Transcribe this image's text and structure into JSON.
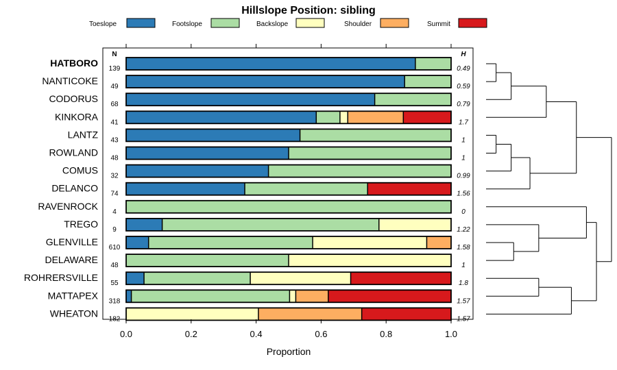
{
  "chart_data": {
    "type": "bar",
    "orientation": "horizontal-stacked",
    "title": "Hillslope Position: sibling",
    "xlabel": "Proportion",
    "xlim": [
      0,
      1
    ],
    "xticks": [
      "0.0",
      "0.2",
      "0.4",
      "0.6",
      "0.8",
      "1.0"
    ],
    "n_header": "N",
    "h_header": "H",
    "legend": [
      {
        "name": "Toeslope",
        "color": "#2c7bb6"
      },
      {
        "name": "Footslope",
        "color": "#abdda4"
      },
      {
        "name": "Backslope",
        "color": "#ffffbf"
      },
      {
        "name": "Shoulder",
        "color": "#fdae61"
      },
      {
        "name": "Summit",
        "color": "#d7191c"
      }
    ],
    "highlight": "HATBORO",
    "rows": [
      {
        "name": "HATBORO",
        "n": "139",
        "h": "0.49",
        "values": [
          0.89,
          0.11,
          0,
          0,
          0
        ]
      },
      {
        "name": "NANTICOKE",
        "n": "49",
        "h": "0.59",
        "values": [
          0.857,
          0.143,
          0,
          0,
          0
        ]
      },
      {
        "name": "CODORUS",
        "n": "68",
        "h": "0.79",
        "values": [
          0.765,
          0.235,
          0,
          0,
          0
        ]
      },
      {
        "name": "KINKORA",
        "n": "41",
        "h": "1.7",
        "values": [
          0.585,
          0.073,
          0.024,
          0.171,
          0.146
        ]
      },
      {
        "name": "LANTZ",
        "n": "43",
        "h": "1",
        "values": [
          0.535,
          0.465,
          0,
          0,
          0
        ]
      },
      {
        "name": "ROWLAND",
        "n": "48",
        "h": "1",
        "values": [
          0.5,
          0.5,
          0,
          0,
          0
        ]
      },
      {
        "name": "COMUS",
        "n": "32",
        "h": "0.99",
        "values": [
          0.438,
          0.562,
          0,
          0,
          0
        ]
      },
      {
        "name": "DELANCO",
        "n": "74",
        "h": "1.56",
        "values": [
          0.365,
          0.378,
          0,
          0,
          0.257
        ]
      },
      {
        "name": "RAVENROCK",
        "n": "4",
        "h": "0",
        "values": [
          0,
          1,
          0,
          0,
          0
        ]
      },
      {
        "name": "TREGO",
        "n": "9",
        "h": "1.22",
        "values": [
          0.111,
          0.667,
          0.222,
          0,
          0
        ]
      },
      {
        "name": "GLENVILLE",
        "n": "610",
        "h": "1.58",
        "values": [
          0.069,
          0.505,
          0.351,
          0.075,
          0
        ]
      },
      {
        "name": "DELAWARE",
        "n": "48",
        "h": "1",
        "values": [
          0,
          0.5,
          0.5,
          0,
          0
        ]
      },
      {
        "name": "ROHRERSVILLE",
        "n": "55",
        "h": "1.8",
        "values": [
          0.055,
          0.327,
          0.309,
          0,
          0.309
        ]
      },
      {
        "name": "MATTAPEX",
        "n": "318",
        "h": "1.57",
        "values": [
          0.016,
          0.487,
          0.019,
          0.1,
          0.378
        ]
      },
      {
        "name": "WHEATON",
        "n": "182",
        "h": "1.57",
        "values": [
          0,
          0,
          0.407,
          0.318,
          0.275
        ]
      }
    ],
    "dendrogram": [
      {
        "a": "L:0",
        "b": "L:1",
        "h": 0.08
      },
      {
        "a": "M:0",
        "b": "L:2",
        "h": 0.2
      },
      {
        "a": "L:4",
        "b": "L:5",
        "h": 0.08
      },
      {
        "a": "M:2",
        "b": "L:6",
        "h": 0.2
      },
      {
        "a": "M:3",
        "b": "L:7",
        "h": 0.35
      },
      {
        "a": "M:1",
        "b": "L:3",
        "h": 0.48
      },
      {
        "a": "M:5",
        "b": "M:4",
        "h": 0.72
      },
      {
        "a": "L:10",
        "b": "L:11",
        "h": 0.22
      },
      {
        "a": "L:9",
        "b": "M:7",
        "h": 0.42
      },
      {
        "a": "L:8",
        "b": "M:8",
        "h": 0.8
      },
      {
        "a": "L:12",
        "b": "L:13",
        "h": 0.42
      },
      {
        "a": "M:10",
        "b": "L:14",
        "h": 0.68
      },
      {
        "a": "M:9",
        "b": "M:11",
        "h": 0.88
      },
      {
        "a": "M:6",
        "b": "M:12",
        "h": 1.0
      }
    ]
  }
}
